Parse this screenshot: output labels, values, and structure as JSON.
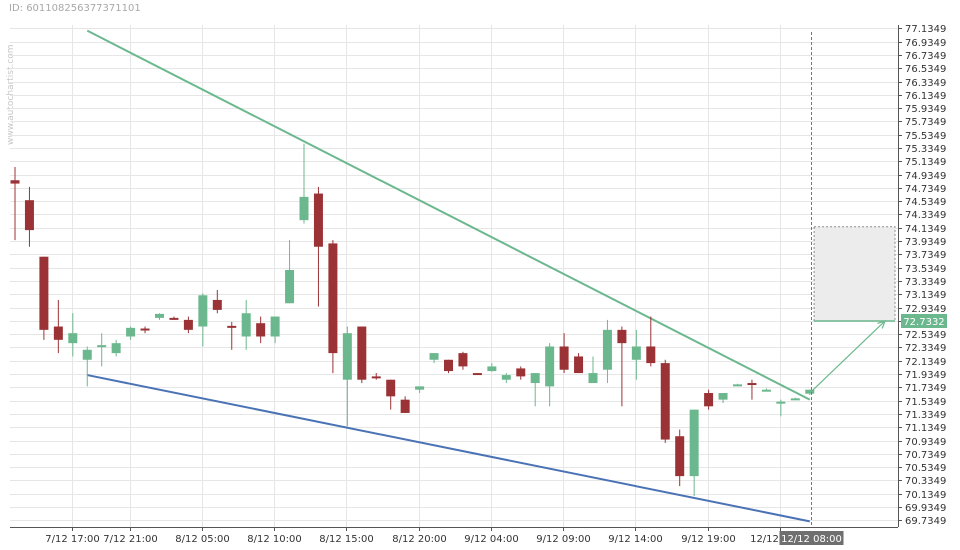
{
  "header": {
    "id_text": "ID: 601108256377371101"
  },
  "watermark": "www.autochartist.com",
  "colors": {
    "bull": "#6cb88e",
    "bear": "#9b3336",
    "resistance": "#6cb88e",
    "support": "#4a72b5",
    "grid": "#e6e6e6",
    "price_tag": "#6cb88e"
  },
  "chart_data": {
    "type": "candlestick",
    "title": "",
    "xlabel": "",
    "ylabel": "",
    "ylim": [
      69.6349,
      77.1849
    ],
    "y_ticks": [
      "77.1349",
      "76.9349",
      "76.7349",
      "76.5349",
      "76.3349",
      "76.1349",
      "75.9349",
      "75.7349",
      "75.5349",
      "75.3349",
      "75.1349",
      "74.9349",
      "74.7349",
      "74.5349",
      "74.3349",
      "74.1349",
      "73.9349",
      "73.7349",
      "73.5349",
      "73.3349",
      "73.1349",
      "72.9349",
      "72.7349",
      "72.5349",
      "72.3349",
      "72.1349",
      "71.9349",
      "71.7349",
      "71.5349",
      "71.3349",
      "71.1349",
      "70.9349",
      "70.7349",
      "70.5349",
      "70.3349",
      "70.1349",
      "69.9349",
      "69.7349"
    ],
    "x_ticks": [
      {
        "label": "7/12 17:00",
        "index": 2
      },
      {
        "label": "7/12 21:00",
        "index": 6
      },
      {
        "label": "8/12 05:00",
        "index": 11
      },
      {
        "label": "8/12 10:00",
        "index": 16
      },
      {
        "label": "8/12 15:00",
        "index": 21
      },
      {
        "label": "8/12 20:00",
        "index": 26
      },
      {
        "label": "9/12 04:00",
        "index": 31
      },
      {
        "label": "9/12 09:00",
        "index": 36
      },
      {
        "label": "9/12 14:00",
        "index": 41
      },
      {
        "label": "9/12 19:00",
        "index": 46
      },
      {
        "label": "12/12 02:00",
        "index": 51
      }
    ],
    "candles": [
      {
        "o": 74.85,
        "h": 75.05,
        "l": 73.95,
        "c": 74.8
      },
      {
        "o": 74.55,
        "h": 74.75,
        "l": 73.85,
        "c": 74.1
      },
      {
        "o": 73.7,
        "h": 73.7,
        "l": 72.45,
        "c": 72.6
      },
      {
        "o": 72.65,
        "h": 73.05,
        "l": 72.25,
        "c": 72.45
      },
      {
        "o": 72.4,
        "h": 72.85,
        "l": 72.2,
        "c": 72.55
      },
      {
        "o": 72.15,
        "h": 72.35,
        "l": 71.75,
        "c": 72.3
      },
      {
        "o": 72.35,
        "h": 72.55,
        "l": 72.05,
        "c": 72.37
      },
      {
        "o": 72.25,
        "h": 72.45,
        "l": 72.2,
        "c": 72.4
      },
      {
        "o": 72.5,
        "h": 72.65,
        "l": 72.45,
        "c": 72.63
      },
      {
        "o": 72.62,
        "h": 72.65,
        "l": 72.55,
        "c": 72.61
      },
      {
        "o": 72.78,
        "h": 72.85,
        "l": 72.75,
        "c": 72.84
      },
      {
        "o": 72.78,
        "h": 72.8,
        "l": 72.75,
        "c": 72.77
      },
      {
        "o": 72.75,
        "h": 72.8,
        "l": 72.55,
        "c": 72.6
      },
      {
        "o": 72.65,
        "h": 73.15,
        "l": 72.35,
        "c": 73.12
      },
      {
        "o": 73.05,
        "h": 73.2,
        "l": 72.85,
        "c": 72.9
      },
      {
        "o": 72.66,
        "h": 72.72,
        "l": 72.3,
        "c": 72.65
      },
      {
        "o": 72.5,
        "h": 73.05,
        "l": 72.3,
        "c": 72.85
      },
      {
        "o": 72.7,
        "h": 72.8,
        "l": 72.4,
        "c": 72.5
      },
      {
        "o": 72.5,
        "h": 72.8,
        "l": 72.4,
        "c": 72.8
      },
      {
        "o": 73.0,
        "h": 73.95,
        "l": 73.0,
        "c": 73.5
      },
      {
        "o": 74.25,
        "h": 75.4,
        "l": 74.2,
        "c": 74.6
      },
      {
        "o": 74.65,
        "h": 74.75,
        "l": 72.95,
        "c": 73.85
      },
      {
        "o": 73.9,
        "h": 73.95,
        "l": 71.95,
        "c": 72.25
      },
      {
        "o": 71.85,
        "h": 72.65,
        "l": 71.15,
        "c": 72.55
      },
      {
        "o": 72.65,
        "h": 72.65,
        "l": 71.8,
        "c": 71.85
      },
      {
        "o": 71.9,
        "h": 71.95,
        "l": 71.85,
        "c": 71.87
      },
      {
        "o": 71.85,
        "h": 71.85,
        "l": 71.4,
        "c": 71.6
      },
      {
        "o": 71.55,
        "h": 71.6,
        "l": 71.35,
        "c": 71.35
      },
      {
        "o": 71.7,
        "h": 71.75,
        "l": 71.65,
        "c": 71.75
      },
      {
        "o": 72.15,
        "h": 72.25,
        "l": 72.1,
        "c": 72.25
      },
      {
        "o": 72.15,
        "h": 72.15,
        "l": 71.95,
        "c": 71.98
      },
      {
        "o": 72.25,
        "h": 72.27,
        "l": 72.0,
        "c": 72.05
      },
      {
        "o": 71.95,
        "h": 71.95,
        "l": 71.93,
        "c": 71.94
      },
      {
        "o": 71.98,
        "h": 72.1,
        "l": 71.97,
        "c": 72.05
      },
      {
        "o": 71.85,
        "h": 71.95,
        "l": 71.8,
        "c": 71.92
      },
      {
        "o": 72.02,
        "h": 72.05,
        "l": 71.85,
        "c": 71.9
      },
      {
        "o": 71.8,
        "h": 71.95,
        "l": 71.45,
        "c": 71.95
      },
      {
        "o": 71.75,
        "h": 72.4,
        "l": 71.45,
        "c": 72.35
      },
      {
        "o": 72.35,
        "h": 72.55,
        "l": 71.95,
        "c": 72.0
      },
      {
        "o": 72.2,
        "h": 72.25,
        "l": 71.95,
        "c": 71.95
      },
      {
        "o": 71.8,
        "h": 72.2,
        "l": 71.8,
        "c": 71.95
      },
      {
        "o": 72.0,
        "h": 72.75,
        "l": 71.8,
        "c": 72.6
      },
      {
        "o": 72.6,
        "h": 72.65,
        "l": 71.45,
        "c": 72.4
      },
      {
        "o": 72.15,
        "h": 72.6,
        "l": 71.85,
        "c": 72.35
      },
      {
        "o": 72.35,
        "h": 72.8,
        "l": 72.05,
        "c": 72.1
      },
      {
        "o": 72.1,
        "h": 72.15,
        "l": 70.9,
        "c": 70.95
      },
      {
        "o": 71.0,
        "h": 71.1,
        "l": 70.25,
        "c": 70.4
      },
      {
        "o": 70.4,
        "h": 71.4,
        "l": 70.1,
        "c": 71.4
      },
      {
        "o": 71.65,
        "h": 71.7,
        "l": 71.4,
        "c": 71.45
      },
      {
        "o": 71.55,
        "h": 71.65,
        "l": 71.5,
        "c": 71.65
      },
      {
        "o": 71.78,
        "h": 71.79,
        "l": 71.77,
        "c": 71.78
      },
      {
        "o": 71.8,
        "h": 71.85,
        "l": 71.55,
        "c": 71.77
      },
      {
        "o": 71.7,
        "h": 71.72,
        "l": 71.68,
        "c": 71.7
      },
      {
        "o": 71.5,
        "h": 71.55,
        "l": 71.3,
        "c": 71.52
      },
      {
        "o": 71.57,
        "h": 71.58,
        "l": 71.56,
        "c": 71.57
      },
      {
        "o": 71.64,
        "h": 71.7,
        "l": 71.62,
        "c": 71.7
      }
    ],
    "resistance_line": {
      "start": {
        "index": 5,
        "value": 77.1
      },
      "end": {
        "index": 55,
        "value": 71.55
      }
    },
    "support_line": {
      "start": {
        "index": 5,
        "value": 71.92
      },
      "end": {
        "index": 55,
        "value": 69.72
      }
    },
    "forecast_box": {
      "index_from": 55.3,
      "index_to": 60.9,
      "value_high": 74.15,
      "value_low": 72.7332
    },
    "forecast_arrow": {
      "from": {
        "index": 55,
        "value": 71.65
      },
      "to": {
        "index": 60.9,
        "value": 72.7332
      }
    },
    "current_price": "72.7332",
    "current_time_label": "12/12 08:00",
    "current_time_index": 55
  }
}
